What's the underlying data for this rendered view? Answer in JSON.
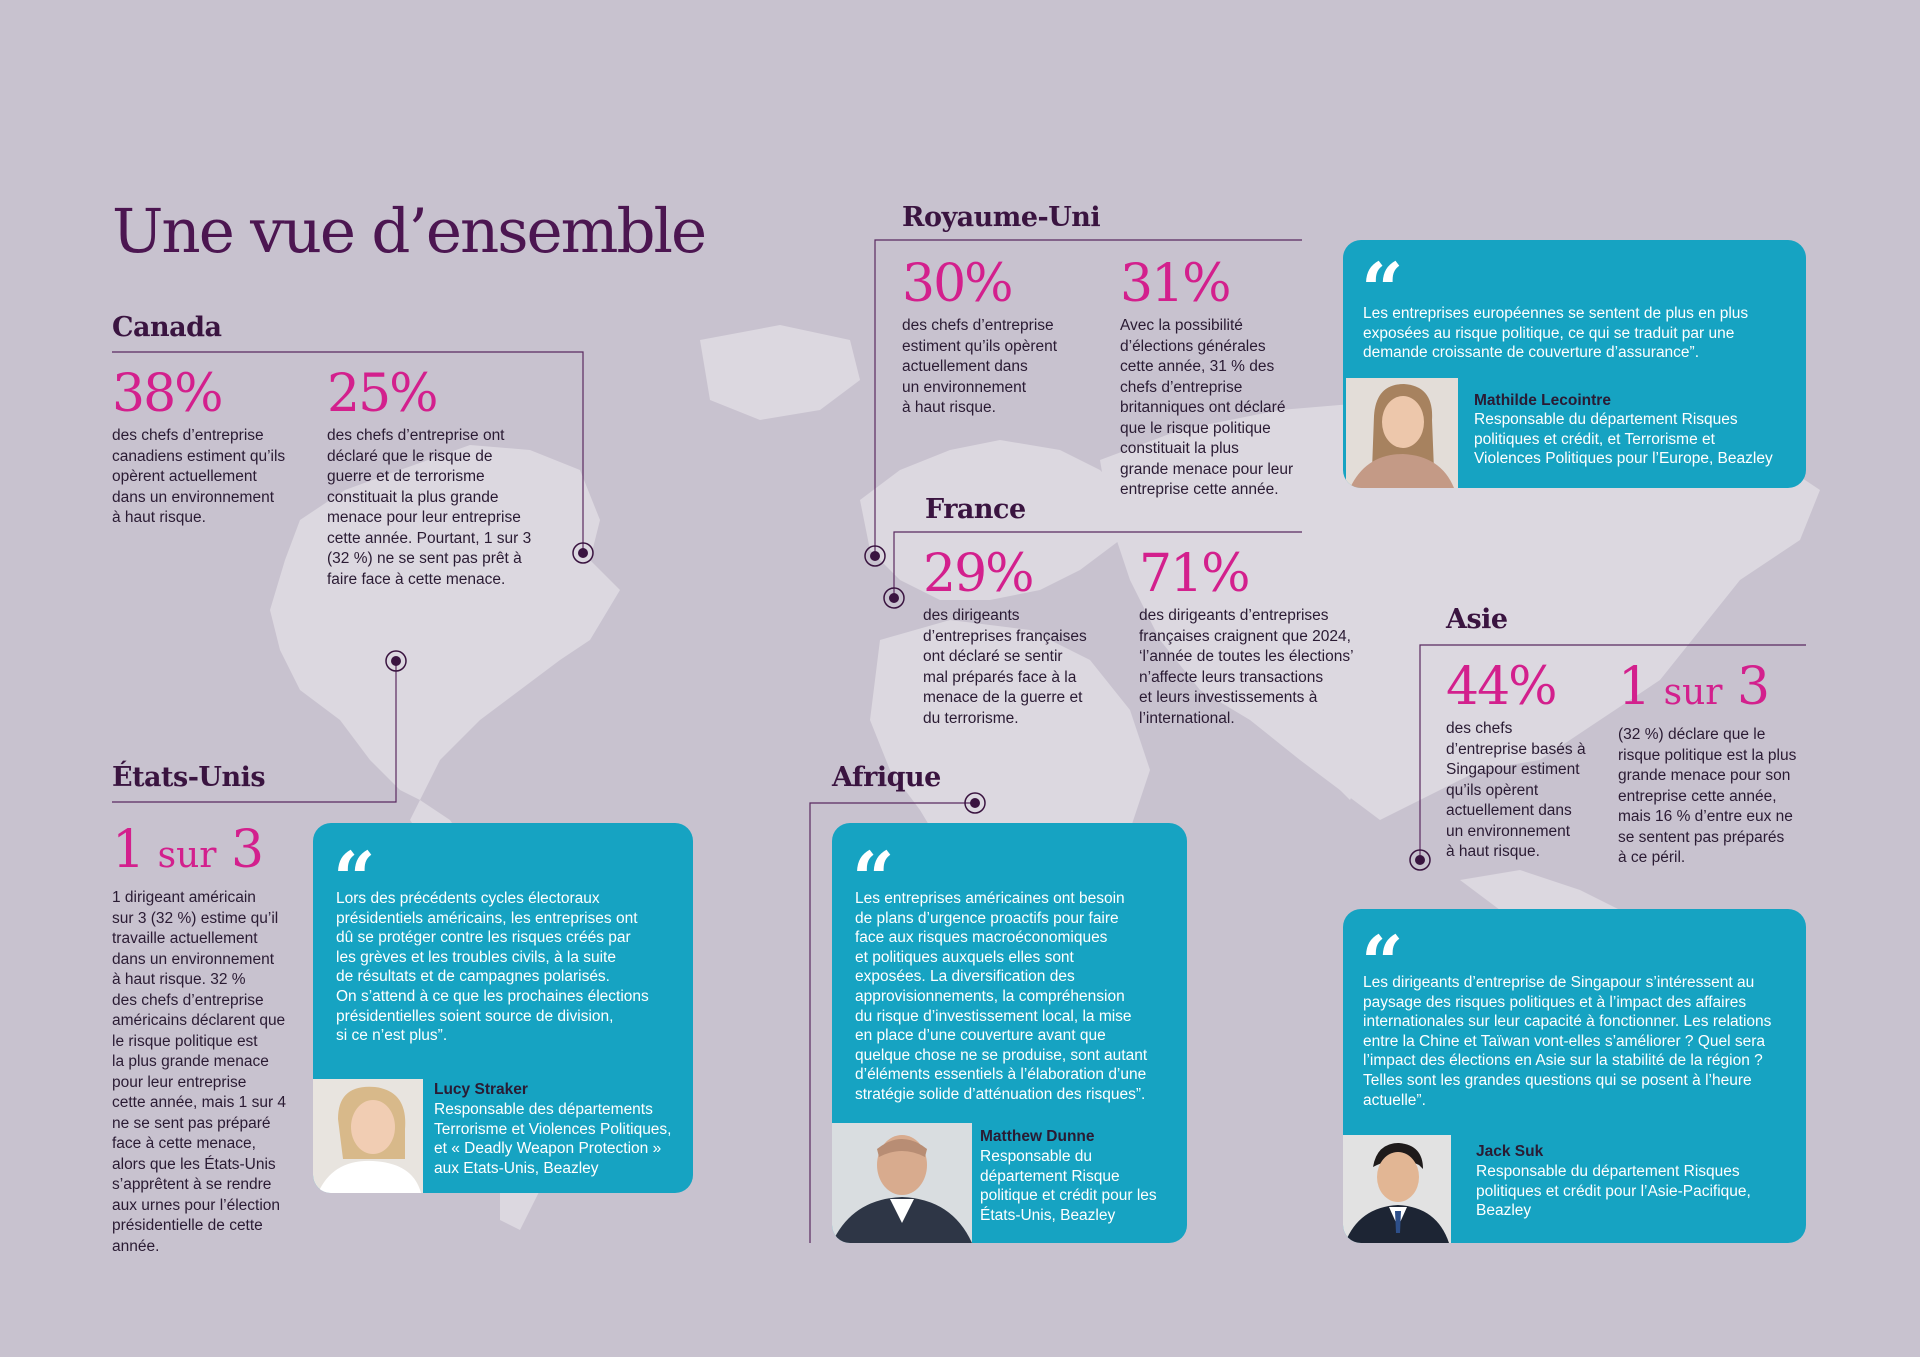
{
  "title": "Une vue d’ensemble",
  "regions": {
    "canada": {
      "name": "Canada",
      "stats": [
        {
          "value": "38%",
          "text": [
            "des chefs d’entreprise",
            "canadiens estiment qu’ils",
            "opèrent actuellement",
            "dans un environnement",
            "à haut risque."
          ]
        },
        {
          "value": "25%",
          "text": [
            "des chefs d’entreprise ont",
            "déclaré que le risque de",
            "guerre et de terrorisme",
            "constituait la plus grande",
            "menace pour leur entreprise",
            "cette année. Pourtant, 1 sur 3",
            "(32 %) ne se sent pas prêt à",
            "faire face à cette menace."
          ]
        }
      ]
    },
    "usa": {
      "name": "États-Unis",
      "stat": {
        "value_num_a": "1",
        "value_word": "sur",
        "value_num_b": "3",
        "text": [
          "1 dirigeant américain",
          "sur 3 (32 %) estime qu’il",
          "travaille actuellement",
          "dans un environnement",
          "à haut risque. 32 %",
          "des chefs d’entreprise",
          "américains déclarent que",
          "le risque politique est",
          "la plus grande menace",
          "pour leur entreprise",
          "cette année, mais 1 sur 4",
          "ne se sent pas préparé",
          "face à cette menace,",
          "alors que les États-Unis",
          "s’apprêtent à se rendre",
          "aux urnes pour l’élection",
          "présidentielle de cette",
          "année."
        ]
      },
      "quote": {
        "text": [
          "Lors des précédents cycles électoraux",
          "présidentiels américains, les entreprises ont",
          "dû se protéger contre les risques créés par",
          "les grèves et les troubles civils, à la suite",
          "de résultats et de campagnes polarisés.",
          "On s’attend à ce que les prochaines élections",
          "présidentielles soient source de division,",
          "si ce n’est plus”."
        ],
        "name": "Lucy Straker",
        "role": [
          "Responsable des départements",
          "Terrorisme et Violences Politiques,",
          "et « Deadly Weapon Protection »",
          "aux Etats-Unis, Beazley"
        ]
      }
    },
    "uk": {
      "name": "Royaume-Uni",
      "stats": [
        {
          "value": "30%",
          "text": [
            "des chefs d’entreprise",
            "estiment qu’ils opèrent",
            "actuellement dans",
            "un environnement",
            "à haut risque."
          ]
        },
        {
          "value": "31%",
          "text": [
            "Avec la possibilité",
            "d’élections générales",
            "cette année, 31 % des",
            "chefs d’entreprise",
            "britanniques ont déclaré",
            "que le risque politique",
            "constituait la plus",
            "grande menace pour leur",
            "entreprise cette année."
          ]
        }
      ]
    },
    "europe_quote": {
      "text": [
        "Les entreprises européennes se sentent de plus en plus",
        "exposées au risque politique, ce qui se traduit par une",
        "demande croissante de couverture d’assurance”."
      ],
      "name": "Mathilde Lecointre",
      "role": [
        "Responsable du département Risques",
        "politiques et crédit, et Terrorisme et",
        "Violences Politiques pour l’Europe, Beazley"
      ]
    },
    "france": {
      "name": "France",
      "stats": [
        {
          "value": "29%",
          "text": [
            "des dirigeants",
            "d’entreprises françaises",
            "ont déclaré se sentir",
            "mal préparés face à la",
            "menace de la guerre et",
            "du terrorisme."
          ]
        },
        {
          "value": "71%",
          "text": [
            "des dirigeants d’entreprises",
            "françaises craignent que 2024,",
            "‘l’année de toutes les élections’",
            "n’affecte leurs transactions",
            "et leurs investissements à",
            "l’international."
          ]
        }
      ]
    },
    "africa": {
      "name": "Afrique",
      "quote": {
        "text": [
          "Les entreprises américaines ont besoin",
          "de plans d’urgence proactifs pour faire",
          "face aux risques macroéconomiques",
          "et politiques auxquels elles sont",
          "exposées. La diversification des",
          "approvisionnements, la compréhension",
          "du risque d’investissement local, la mise",
          "en place d’une couverture avant que",
          "quelque chose ne se produise, sont autant",
          "d’éléments essentiels à l’élaboration d’une",
          "stratégie solide d’atténuation des risques”."
        ],
        "name": "Matthew Dunne",
        "role": [
          "Responsable du",
          "département Risque",
          "politique et crédit pour les",
          "États-Unis, Beazley"
        ]
      }
    },
    "asia": {
      "name": "Asie",
      "stats": [
        {
          "value": "44%",
          "text": [
            "des chefs",
            "d’entreprise basés à",
            "Singapour estiment",
            "qu’ils opèrent",
            "actuellement dans",
            "un environnement",
            "à haut risque."
          ]
        },
        {
          "value_num_a": "1",
          "value_word": "sur",
          "value_num_b": "3",
          "text": [
            "(32 %) déclare que le",
            "risque politique est la plus",
            "grande menace pour son",
            "entreprise cette année,",
            "mais 16 % d’entre eux ne",
            "se sentent pas préparés",
            "à ce péril."
          ]
        }
      ],
      "quote": {
        "text": [
          "Les dirigeants d’entreprise de Singapour s’intéressent au",
          "paysage des risques politiques et à l’impact des affaires",
          "internationales sur leur capacité à fonctionner. Les relations",
          "entre la Chine et Taïwan vont-elles s’améliorer ? Quel sera",
          "l’impact des élections en Asie sur la stabilité de la région ?",
          "Telles sont les grandes questions qui se posent à l’heure",
          "actuelle”."
        ],
        "name": "Jack Suk",
        "role": [
          "Responsable du département Risques",
          "politiques et crédit pour l’Asie-Pacifique,",
          "Beazley"
        ]
      }
    }
  },
  "quote_mark": "“",
  "colors": {
    "background": "#c8c2cf",
    "map": "#dcd8e0",
    "accent": "#d3208d",
    "heading": "#4c1651",
    "card": "#16a3c2",
    "line": "#5a2a60"
  }
}
